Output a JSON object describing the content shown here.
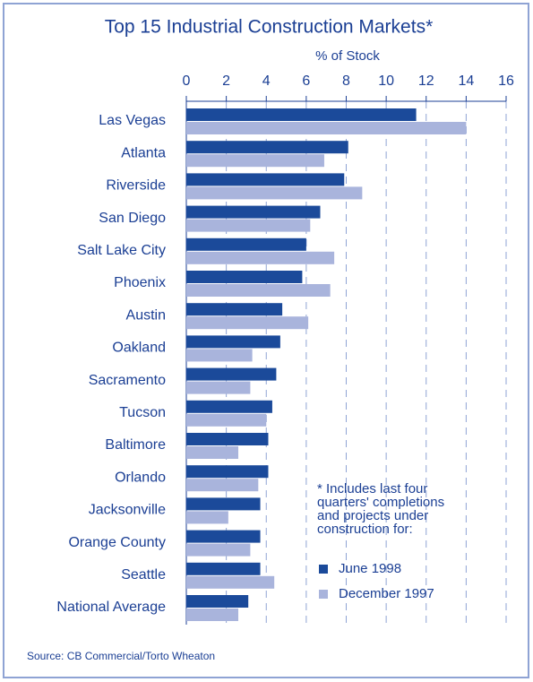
{
  "chart_data": {
    "type": "hbar",
    "title": "Top 15 Industrial Construction Markets*",
    "xlabel": "% of Stock",
    "categories": [
      "Las Vegas",
      "Atlanta",
      "Riverside",
      "San Diego",
      "Salt Lake City",
      "Phoenix",
      "Austin",
      "Oakland",
      "Sacramento",
      "Tucson",
      "Baltimore",
      "Orlando",
      "Jacksonville",
      "Orange County",
      "Seattle",
      "National Average"
    ],
    "series": [
      {
        "name": "June 1998",
        "color": "#1b4a9a",
        "values": [
          11.5,
          8.1,
          7.9,
          6.7,
          6.0,
          5.8,
          4.8,
          4.7,
          4.5,
          4.3,
          4.1,
          4.1,
          3.7,
          3.7,
          3.7,
          3.1
        ]
      },
      {
        "name": "December 1997",
        "color": "#a9b4dc",
        "values": [
          14.0,
          6.9,
          8.8,
          6.2,
          7.4,
          7.2,
          6.1,
          3.3,
          3.2,
          4.0,
          2.6,
          3.6,
          2.1,
          3.2,
          4.4,
          2.6
        ]
      }
    ],
    "xlim": [
      0,
      16
    ],
    "xticks": [
      0,
      2,
      4,
      6,
      8,
      10,
      12,
      14,
      16
    ],
    "grid": true,
    "legend": "lower right",
    "annotation": [
      "* Includes last four",
      "quarters' completions",
      "and projects under",
      "construction for:"
    ],
    "source": "Source: CB Commercial/Torto Wheaton"
  }
}
